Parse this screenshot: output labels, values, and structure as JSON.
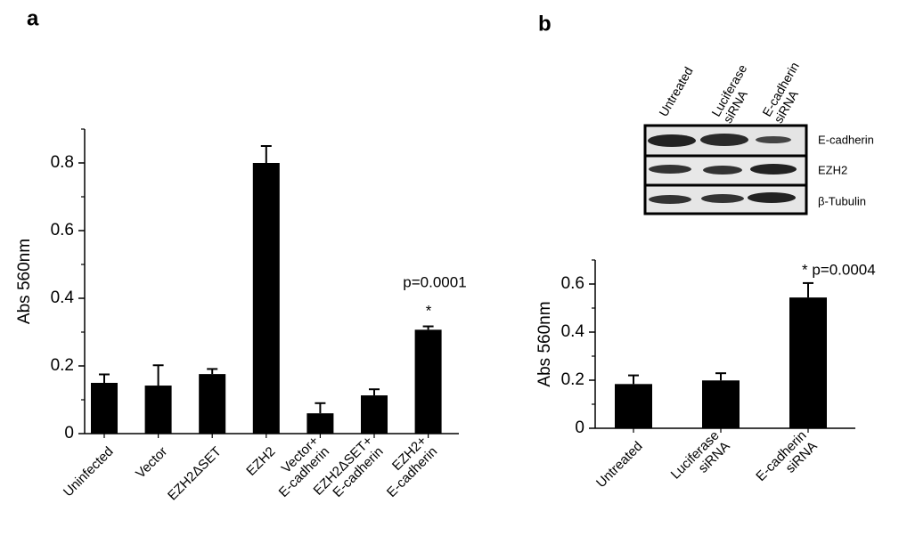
{
  "chart_data": [
    {
      "type": "bar",
      "panel_label": "a",
      "ylabel": "Abs 560nm",
      "categories": [
        [
          "Uninfected"
        ],
        [
          "Vector"
        ],
        [
          "EZH2ΔSET"
        ],
        [
          "EZH2"
        ],
        [
          "Vector+",
          "E-cadherin"
        ],
        [
          "EZH2ΔSET+",
          "E-cadherin"
        ],
        [
          "EZH2+",
          "E-cadherin"
        ]
      ],
      "values": [
        0.15,
        0.142,
        0.176,
        0.8,
        0.06,
        0.113,
        0.307
      ],
      "errors": [
        0.025,
        0.06,
        0.015,
        0.05,
        0.03,
        0.018,
        0.01
      ],
      "color": "#000000",
      "ylim": [
        0,
        0.9
      ],
      "yticks": [
        0,
        0.2,
        0.4,
        0.6,
        0.8
      ],
      "minor_yticks": [
        0.1,
        0.3,
        0.5,
        0.7,
        0.9
      ],
      "annotations": [
        "p=0.0001",
        "*"
      ]
    },
    {
      "type": "bar",
      "panel_label": "b",
      "ylabel": "Abs 560nm",
      "categories": [
        [
          "Untreated"
        ],
        [
          "Luciferase",
          "siRNA"
        ],
        [
          "E-cadherin",
          "siRNA"
        ]
      ],
      "values": [
        0.184,
        0.199,
        0.544
      ],
      "errors": [
        0.036,
        0.03,
        0.06
      ],
      "color": "#000000",
      "ylim": [
        0,
        0.7
      ],
      "yticks": [
        0,
        0.2,
        0.4,
        0.6
      ],
      "minor_yticks": [
        0.1,
        0.3,
        0.5,
        0.7
      ],
      "annotations": [
        "* p=0.0004"
      ],
      "blot": {
        "lanes": [
          [
            "Untreated"
          ],
          [
            "Luciferase",
            "siRNA"
          ],
          [
            "E-cadherin",
            "siRNA"
          ]
        ],
        "rows": [
          "E-cadherin",
          "EZH2",
          "β-Tubulin"
        ]
      }
    }
  ]
}
